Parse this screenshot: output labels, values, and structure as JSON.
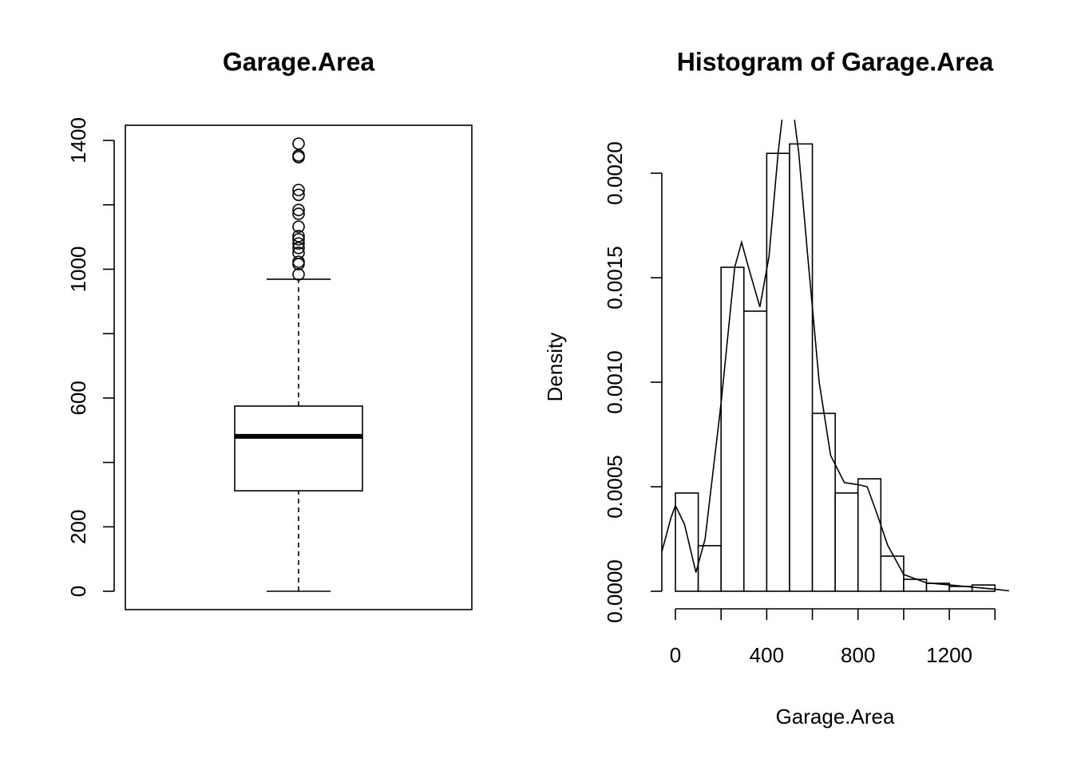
{
  "chart_data": [
    {
      "type": "box",
      "title": "Garage.Area",
      "min": 0,
      "q1": 312,
      "median": 481,
      "q3": 575,
      "max": 969,
      "outliers": [
        1390,
        1353,
        1348,
        1246,
        1231,
        1184,
        1172,
        1132,
        1103,
        1093,
        1080,
        1066,
        1051,
        1023,
        1016,
        984
      ],
      "ylim": [
        -57,
        1447
      ],
      "yticks": [
        0,
        200,
        {
          "value": 400,
          "label": null
        },
        600,
        {
          "value": 800,
          "label": null
        },
        1000,
        {
          "value": 1200,
          "label": null
        },
        1400
      ]
    },
    {
      "type": "histogram",
      "title": "Histogram of Garage.Area",
      "xlabel": "Garage.Area",
      "ylabel": "Density",
      "bins": [
        0,
        100,
        200,
        300,
        400,
        500,
        600,
        700,
        800,
        900,
        1000,
        1100,
        1200,
        1300,
        1400
      ],
      "values": [
        0.00047,
        0.000218,
        0.00155,
        0.00134,
        0.002095,
        0.00214,
        0.000851,
        0.00047,
        0.000538,
        0.000168,
        5.7e-05,
        3.8e-05,
        2.3e-05,
        3e-05
      ],
      "density": {
        "x": [
          -59,
          -20,
          0,
          40,
          90,
          130,
          200,
          260,
          290,
          320,
          370,
          410,
          450,
          493,
          540,
          580,
          630,
          680,
          740,
          800,
          840,
          880,
          930,
          1000,
          1100,
          1200,
          1300,
          1400,
          1462
        ],
        "y": [
          0.00019,
          0.00035,
          0.00041,
          0.00032,
          9e-05,
          0.00025,
          0.0009,
          0.00155,
          0.00167,
          0.00155,
          0.00136,
          0.0016,
          0.0021,
          0.0025,
          0.0021,
          0.0016,
          0.001,
          0.00065,
          0.00052,
          0.00051,
          0.0005,
          0.00038,
          0.00022,
          8e-05,
          4e-05,
          3e-05,
          2e-05,
          1e-05,
          2e-06
        ]
      },
      "xlim": [
        -59.5,
        1462
      ],
      "ylim": [
        -8.4e-05,
        0.002256
      ],
      "xticks": [
        0,
        {
          "value": 200,
          "label": null
        },
        400,
        {
          "value": 600,
          "label": null
        },
        800,
        {
          "value": 1000,
          "label": null
        },
        1200,
        {
          "value": 1400,
          "label": null
        }
      ],
      "yticks": [
        {
          "value": 0,
          "label": "0.0000"
        },
        {
          "value": 0.0005,
          "label": "0.0005"
        },
        {
          "value": 0.001,
          "label": "0.0010"
        },
        {
          "value": 0.0015,
          "label": "0.0015"
        },
        {
          "value": 0.002,
          "label": "0.0020"
        }
      ]
    }
  ]
}
